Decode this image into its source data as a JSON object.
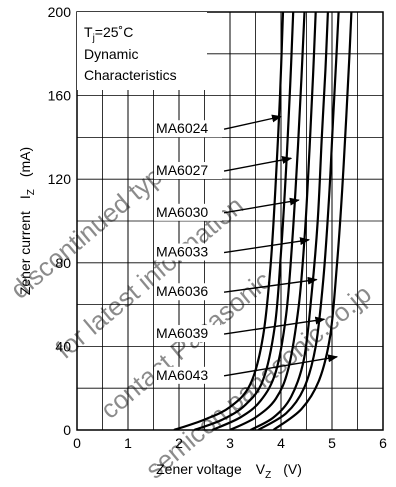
{
  "chart_data": {
    "type": "line",
    "title": "",
    "xlabel": "Zener voltage",
    "xlabel_symbol": "V",
    "xlabel_sub": "Z",
    "xlabel_unit": "(V)",
    "ylabel": "Zener current",
    "ylabel_symbol": "I",
    "ylabel_sub": "Z",
    "ylabel_unit": "(mA)",
    "xlim": [
      0,
      6
    ],
    "ylim": [
      0,
      200
    ],
    "x_ticks": [
      "0",
      "1",
      "2",
      "3",
      "4",
      "5",
      "6"
    ],
    "y_ticks": [
      "0",
      "40",
      "80",
      "120",
      "160",
      "200"
    ],
    "grid": true,
    "grid_minor": "x every 0.5 V, y every 20 mA",
    "conditions": {
      "line1_main": "T",
      "line1_sub": "j",
      "line1_rest": "=25˚C",
      "line2": "Dynamic",
      "line3": "Characteristics"
    },
    "series": [
      {
        "name": "MA6024",
        "points": [
          [
            1.9,
            0
          ],
          [
            2.5,
            5
          ],
          [
            3.0,
            11
          ],
          [
            3.4,
            22
          ],
          [
            3.65,
            45
          ],
          [
            3.8,
            80
          ],
          [
            3.9,
            120
          ],
          [
            3.98,
            160
          ],
          [
            4.04,
            200
          ]
        ]
      },
      {
        "name": "MA6027",
        "points": [
          [
            2.3,
            0
          ],
          [
            2.85,
            5
          ],
          [
            3.3,
            12
          ],
          [
            3.65,
            24
          ],
          [
            3.88,
            50
          ],
          [
            4.0,
            85
          ],
          [
            4.1,
            125
          ],
          [
            4.18,
            165
          ],
          [
            4.24,
            200
          ]
        ]
      },
      {
        "name": "MA6030",
        "points": [
          [
            2.65,
            0
          ],
          [
            3.2,
            6
          ],
          [
            3.6,
            14
          ],
          [
            3.9,
            28
          ],
          [
            4.1,
            55
          ],
          [
            4.22,
            90
          ],
          [
            4.32,
            130
          ],
          [
            4.4,
            168
          ],
          [
            4.46,
            200
          ]
        ]
      },
      {
        "name": "MA6033",
        "points": [
          [
            3.0,
            0
          ],
          [
            3.5,
            6
          ],
          [
            3.9,
            15
          ],
          [
            4.15,
            30
          ],
          [
            4.35,
            60
          ],
          [
            4.47,
            95
          ],
          [
            4.56,
            135
          ],
          [
            4.63,
            170
          ],
          [
            4.68,
            200
          ]
        ]
      },
      {
        "name": "MA6036",
        "points": [
          [
            3.4,
            0
          ],
          [
            3.85,
            6
          ],
          [
            4.2,
            16
          ],
          [
            4.45,
            34
          ],
          [
            4.6,
            65
          ],
          [
            4.72,
            100
          ],
          [
            4.8,
            140
          ],
          [
            4.87,
            172
          ],
          [
            4.92,
            200
          ]
        ]
      },
      {
        "name": "MA6039",
        "points": [
          [
            3.55,
            0
          ],
          [
            4.1,
            8
          ],
          [
            4.45,
            20
          ],
          [
            4.68,
            40
          ],
          [
            4.83,
            72
          ],
          [
            4.94,
            110
          ],
          [
            5.02,
            148
          ],
          [
            5.08,
            176
          ],
          [
            5.13,
            200
          ]
        ]
      },
      {
        "name": "MA6043",
        "points": [
          [
            3.85,
            0
          ],
          [
            4.4,
            10
          ],
          [
            4.75,
            24
          ],
          [
            4.97,
            46
          ],
          [
            5.1,
            80
          ],
          [
            5.2,
            115
          ],
          [
            5.28,
            150
          ],
          [
            5.34,
            178
          ],
          [
            5.38,
            200
          ]
        ]
      }
    ],
    "labels": [
      {
        "text": "MA6024",
        "x": 1.55,
        "y": 142,
        "arrow_to": [
          4.0,
          150
        ]
      },
      {
        "text": "MA6027",
        "x": 1.55,
        "y": 122,
        "arrow_to": [
          4.2,
          130
        ]
      },
      {
        "text": "MA6030",
        "x": 1.55,
        "y": 102,
        "arrow_to": [
          4.35,
          110
        ]
      },
      {
        "text": "MA6033",
        "x": 1.55,
        "y": 83,
        "arrow_to": [
          4.55,
          91
        ]
      },
      {
        "text": "MA6036",
        "x": 1.55,
        "y": 64,
        "arrow_to": [
          4.7,
          72
        ]
      },
      {
        "text": "MA6039",
        "x": 1.55,
        "y": 44,
        "arrow_to": [
          4.85,
          53
        ]
      },
      {
        "text": "MA6043",
        "x": 1.55,
        "y": 24,
        "arrow_to": [
          5.1,
          35
        ]
      }
    ],
    "watermark": [
      "discontinued type",
      "for latest information",
      "contact Panasonic",
      "semicon.panasonic.co.jp"
    ]
  }
}
